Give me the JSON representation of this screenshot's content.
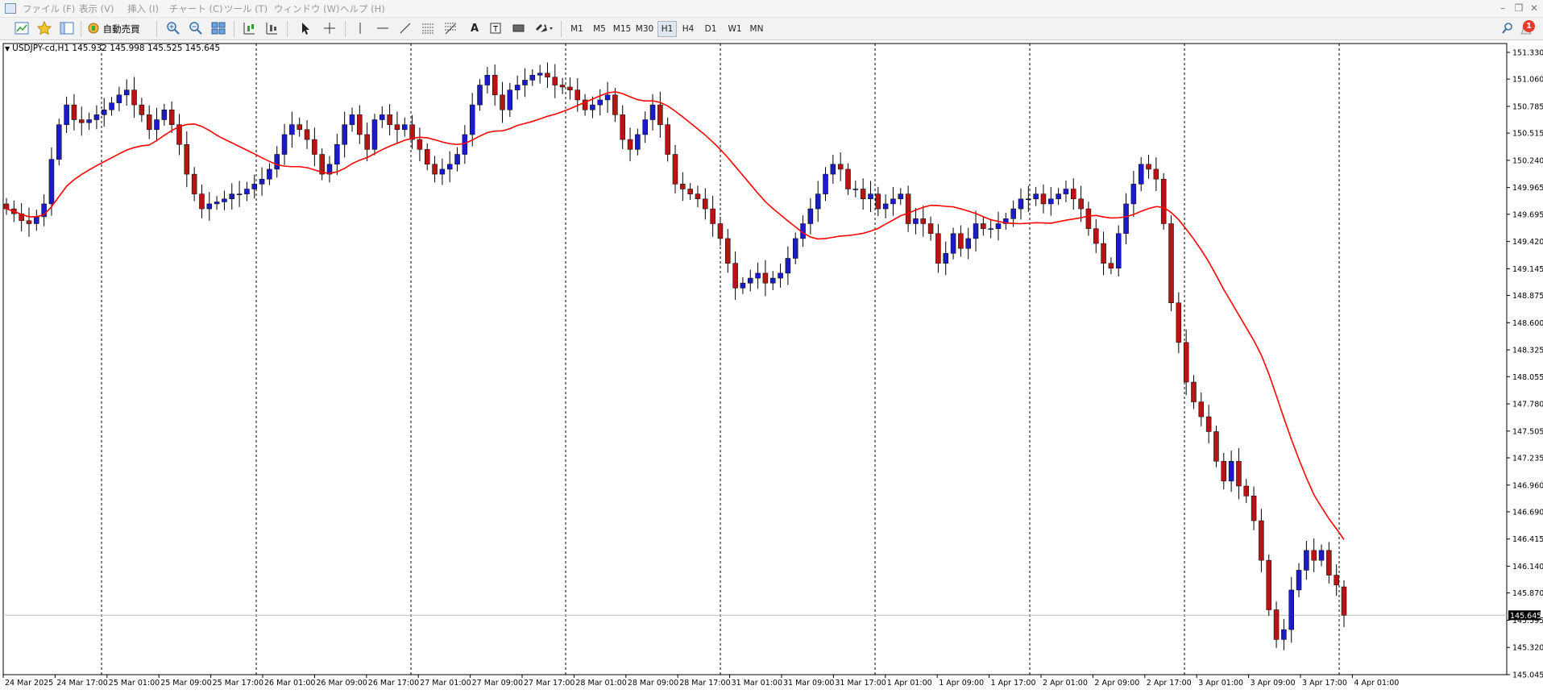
{
  "menu": {
    "items": [
      {
        "label": "ファイル (F)"
      },
      {
        "label": "表示 (V)"
      },
      {
        "label": "挿入 (I)"
      },
      {
        "label": "チャート (C)"
      },
      {
        "label": "ツール (T)"
      },
      {
        "label": "ウィンドウ (W)"
      },
      {
        "label": "ヘルプ (H)"
      }
    ],
    "window_buttons": [
      "–",
      "❐",
      "✕"
    ]
  },
  "toolbar": {
    "autotrade_label": "自動売買",
    "timeframes": [
      "M1",
      "M5",
      "M15",
      "M30",
      "H1",
      "H4",
      "D1",
      "W1",
      "MN"
    ],
    "active_timeframe": "H1",
    "notification_count": "1",
    "icons": [
      "new-chart-icon",
      "favorites-icon",
      "navigator-icon",
      "autotrade-icon",
      "zoom-in-icon",
      "zoom-out-icon",
      "tile-windows-icon",
      "chart-shift-icon",
      "autoscroll-icon",
      "cursor-icon",
      "crosshair-icon",
      "vertical-line-icon",
      "horizontal-line-icon",
      "trendline-icon",
      "channel-icon",
      "fibonacci-icon",
      "text-icon",
      "text-label-icon",
      "rectangle-icon",
      "arrows-icon"
    ]
  },
  "chart": {
    "symbol_header": "USDJPY-cd,H1  145.932 145.998 145.525 145.645",
    "current_price_label": "145.645"
  },
  "chart_data": {
    "type": "candlestick",
    "symbol": "USDJPY-cd",
    "timeframe": "H1",
    "ohlc_latest": {
      "open": 145.932,
      "high": 145.998,
      "low": 145.525,
      "close": 145.645
    },
    "ylim": [
      145.045,
      151.47
    ],
    "y_ticks": [
      "151.330",
      "151.060",
      "150.785",
      "150.515",
      "150.240",
      "149.965",
      "149.695",
      "149.420",
      "149.145",
      "148.875",
      "148.600",
      "148.325",
      "148.055",
      "147.780",
      "147.505",
      "147.235",
      "146.960",
      "146.690",
      "146.415",
      "146.140",
      "145.870",
      "145.595",
      "145.320",
      "145.045"
    ],
    "x_ticks": [
      "24 Mar 2025",
      "24 Mar 17:00",
      "25 Mar 01:00",
      "25 Mar 09:00",
      "25 Mar 17:00",
      "26 Mar 01:00",
      "26 Mar 09:00",
      "26 Mar 17:00",
      "27 Mar 01:00",
      "27 Mar 09:00",
      "27 Mar 17:00",
      "28 Mar 01:00",
      "28 Mar 09:00",
      "28 Mar 17:00",
      "31 Mar 01:00",
      "31 Mar 09:00",
      "31 Mar 17:00",
      "1 Apr 01:00",
      "1 Apr 09:00",
      "1 Apr 17:00",
      "2 Apr 01:00",
      "2 Apr 09:00",
      "2 Apr 17:00",
      "3 Apr 01:00",
      "3 Apr 09:00",
      "3 Apr 17:00",
      "4 Apr 01:00"
    ],
    "closes": [
      149.75,
      149.7,
      149.63,
      149.6,
      149.67,
      149.8,
      150.25,
      150.6,
      150.8,
      150.65,
      150.62,
      150.65,
      150.7,
      150.75,
      150.82,
      150.9,
      150.95,
      150.8,
      150.7,
      150.55,
      150.65,
      150.75,
      150.6,
      150.4,
      150.1,
      149.9,
      149.75,
      149.8,
      149.82,
      149.85,
      149.9,
      149.9,
      149.95,
      150.0,
      150.05,
      150.15,
      150.3,
      150.5,
      150.6,
      150.55,
      150.45,
      150.3,
      150.1,
      150.2,
      150.4,
      150.6,
      150.7,
      150.5,
      150.35,
      150.65,
      150.7,
      150.6,
      150.55,
      150.6,
      150.45,
      150.35,
      150.2,
      150.1,
      150.15,
      150.2,
      150.3,
      150.5,
      150.8,
      151.0,
      151.1,
      150.9,
      150.75,
      150.95,
      151.0,
      151.05,
      151.1,
      151.12,
      151.08,
      151.0,
      150.98,
      150.95,
      150.85,
      150.75,
      150.8,
      150.85,
      150.9,
      150.7,
      150.45,
      150.35,
      150.5,
      150.65,
      150.8,
      150.6,
      150.3,
      150.0,
      149.95,
      149.9,
      149.85,
      149.75,
      149.6,
      149.45,
      149.2,
      148.95,
      149.0,
      149.05,
      149.1,
      149.0,
      149.05,
      149.1,
      149.25,
      149.45,
      149.6,
      149.75,
      149.9,
      150.1,
      150.2,
      150.15,
      149.95,
      149.95,
      149.85,
      149.9,
      149.75,
      149.8,
      149.85,
      149.9,
      149.6,
      149.65,
      149.6,
      149.5,
      149.2,
      149.3,
      149.5,
      149.35,
      149.45,
      149.6,
      149.55,
      149.55,
      149.6,
      149.65,
      149.75,
      149.85,
      149.85,
      149.9,
      149.8,
      149.85,
      149.9,
      149.95,
      149.85,
      149.75,
      149.55,
      149.4,
      149.2,
      149.15,
      149.5,
      149.8,
      150.0,
      150.2,
      150.15,
      150.05,
      149.6,
      148.8,
      148.4,
      148.0,
      147.8,
      147.65,
      147.5,
      147.2,
      147.0,
      147.2,
      146.95,
      146.85,
      146.6,
      146.2,
      145.7,
      145.4,
      145.5,
      145.9,
      146.1,
      146.3,
      146.2,
      146.3,
      146.05,
      145.95,
      145.645
    ],
    "moving_average": {
      "color": "#ff0000",
      "type": "MA"
    },
    "bull_color": "#1b1bc9",
    "bear_color": "#b81414",
    "grid": "vertical-dashed",
    "price_line": 145.645
  }
}
